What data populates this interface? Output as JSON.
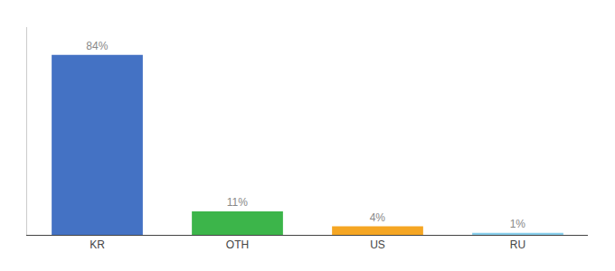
{
  "chart_data": {
    "type": "bar",
    "categories": [
      "KR",
      "OTH",
      "US",
      "RU"
    ],
    "values": [
      84,
      11,
      4,
      1
    ],
    "value_labels": [
      "84%",
      "11%",
      "4%",
      "1%"
    ],
    "colors": [
      "#4472c4",
      "#3cb54a",
      "#f5a623",
      "#87ceeb"
    ],
    "ylim": [
      0,
      97
    ],
    "grid": false,
    "data_labels": true,
    "tick_labels": "x"
  }
}
